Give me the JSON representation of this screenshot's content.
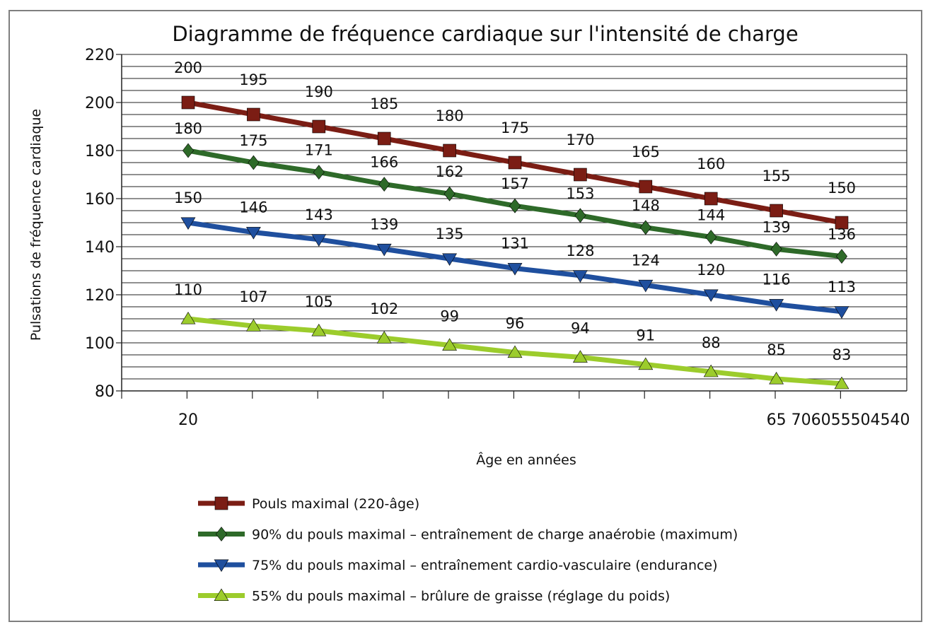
{
  "chart_data": {
    "type": "line",
    "title": "Diagramme de fréquence cardiaque sur l'intensité de charge",
    "xlabel": "Âge en années",
    "ylabel": "Pulsations de fréquence cardiaque",
    "ylim": [
      80,
      220
    ],
    "yticks": [
      80,
      100,
      120,
      140,
      160,
      180,
      200,
      220
    ],
    "grid": true,
    "legend_position": "bottom",
    "x_tick_labels": [
      {
        "index": 0,
        "text": "20"
      },
      {
        "index": 9,
        "text": "65 706055504540"
      }
    ],
    "series": [
      {
        "name": "Pouls maximal (220-âge)",
        "color": "#7b1d14",
        "marker": "square",
        "values": [
          200,
          195,
          190,
          185,
          180,
          175,
          170,
          165,
          160,
          155,
          150
        ]
      },
      {
        "name": "90% du pouls maximal – entraînement de charge anaérobie (maximum)",
        "color": "#2e6a29",
        "marker": "diamond",
        "values": [
          180,
          175,
          171,
          166,
          162,
          157,
          153,
          148,
          144,
          139,
          136
        ]
      },
      {
        "name": "75% du pouls maximal – entraînement cardio-vasculaire (endurance)",
        "color": "#1f4f9e",
        "marker": "triangle-down",
        "values": [
          150,
          146,
          143,
          139,
          135,
          131,
          128,
          124,
          120,
          116,
          113
        ]
      },
      {
        "name": "55% du pouls maximal – brûlure de graisse (réglage du poids)",
        "color": "#9ccc2c",
        "marker": "triangle-up",
        "values": [
          110,
          107,
          105,
          102,
          99,
          96,
          94,
          91,
          88,
          85,
          83
        ]
      }
    ]
  }
}
